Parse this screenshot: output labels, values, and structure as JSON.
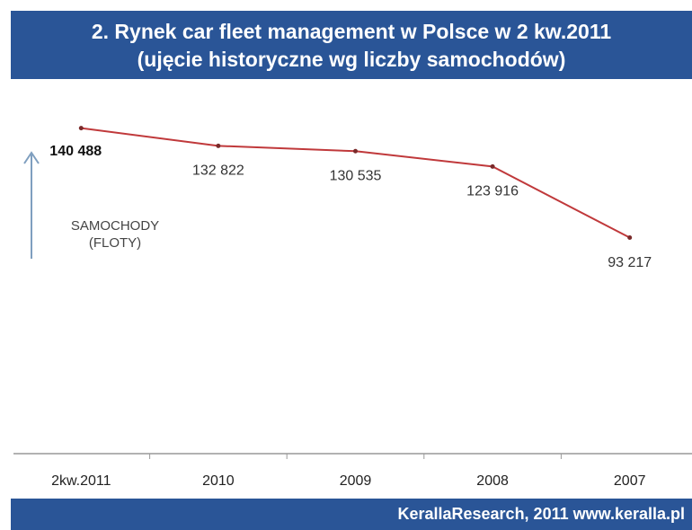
{
  "chart_data": {
    "type": "line",
    "title": [
      "2. Rynek car fleet management w Polsce w 2 kw.2011",
      "(ujęcie historyczne wg liczby samochodów)"
    ],
    "ylabel": [
      "SAMOCHODY",
      "(FLOTY)"
    ],
    "categories": [
      "2kw.2011",
      "2010",
      "2009",
      "2008",
      "2007"
    ],
    "values": [
      140488,
      132822,
      130535,
      123916,
      93217
    ],
    "value_labels": [
      "140 488",
      "132 822",
      "130 535",
      "123 916",
      "93 217"
    ],
    "color": "#c0393b",
    "ylim": [
      0,
      157000
    ],
    "source": "KerallaResearch, 2011 www.keralla.pl"
  }
}
